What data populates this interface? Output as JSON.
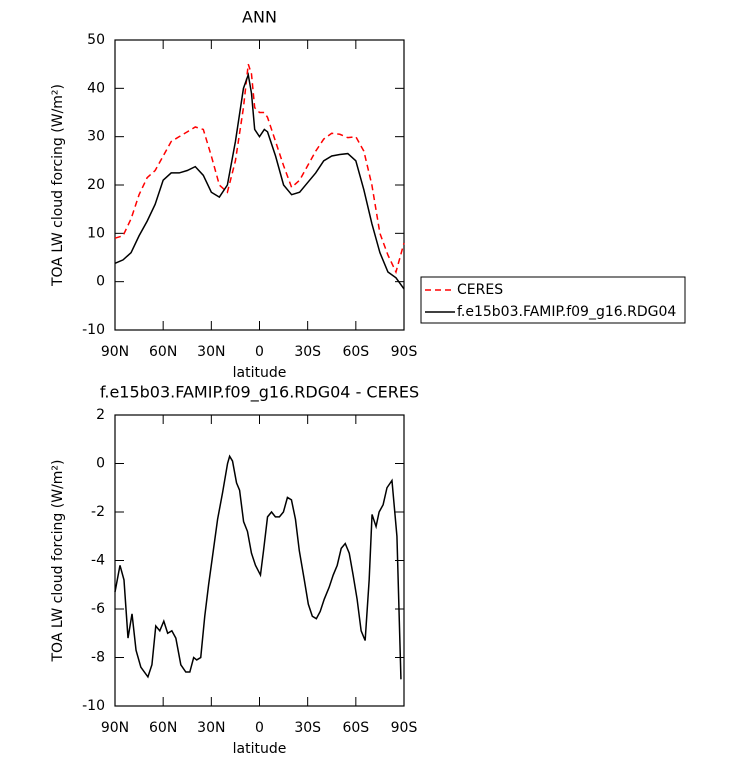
{
  "chart_data": [
    {
      "type": "line",
      "title": "ANN",
      "x_label": "latitude",
      "y_label": "TOA LW cloud forcing (W/m²)",
      "x": [
        90,
        85,
        80,
        75,
        70,
        65,
        60,
        55,
        50,
        45,
        40,
        35,
        30,
        25,
        20,
        15,
        10,
        7,
        5,
        3,
        0,
        -3,
        -5,
        -10,
        -15,
        -20,
        -25,
        -30,
        -35,
        -40,
        -45,
        -50,
        -55,
        -60,
        -65,
        -70,
        -75,
        -80,
        -85,
        -90
      ],
      "series": [
        {
          "name": "CERES",
          "color": "#ff0000",
          "dashed": true,
          "values": [
            9,
            9.5,
            13,
            18,
            21.5,
            23,
            26,
            29,
            30,
            31,
            32,
            31.5,
            26,
            20,
            18.5,
            25,
            36,
            45,
            43,
            36,
            35,
            35,
            34,
            29,
            24,
            19.5,
            21,
            24,
            27,
            29.5,
            30.7,
            30.5,
            29.8,
            30,
            27,
            20,
            10,
            5.5,
            2,
            8
          ]
        },
        {
          "name": "f.e15b03.FAMIP.f09_g16.RDG04",
          "color": "#000000",
          "dashed": false,
          "values": [
            3.8,
            4.5,
            6,
            9.5,
            12.5,
            16,
            21,
            22.5,
            22.5,
            23,
            23.8,
            22,
            18.5,
            17.5,
            20,
            29,
            40,
            42.8,
            39,
            31.5,
            30,
            31.5,
            31,
            26,
            20,
            18,
            18.5,
            20.5,
            22.5,
            25,
            26,
            26.3,
            26.5,
            25,
            19,
            12,
            6,
            2,
            0.8,
            -1.5
          ]
        }
      ],
      "xlim": [
        90,
        -90
      ],
      "xticks": [
        {
          "value": 90,
          "label": "90N"
        },
        {
          "value": 60,
          "label": "60N"
        },
        {
          "value": 30,
          "label": "30N"
        },
        0,
        {
          "value": -30,
          "label": "30S"
        },
        {
          "value": -60,
          "label": "60S"
        },
        {
          "value": -90,
          "label": "90S"
        }
      ],
      "ylim": [
        -10,
        50
      ],
      "yticks": [
        -10,
        0,
        10,
        20,
        30,
        40,
        50
      ],
      "legend": "right"
    },
    {
      "type": "line",
      "title": "f.e15b03.FAMIP.f09_g16.RDG04 - CERES",
      "x_label": "latitude",
      "y_label": "TOA LW cloud forcing (W/m²)",
      "x": [
        90,
        86.9,
        84.4,
        81.9,
        79.4,
        76.9,
        73.9,
        69.5,
        67,
        64.6,
        62.1,
        59.6,
        57.2,
        54.6,
        52.1,
        49,
        45.9,
        43.4,
        41,
        39.1,
        36.6,
        34.1,
        31.7,
        29.2,
        26.1,
        23,
        19.9,
        18.6,
        16.8,
        14.3,
        12.4,
        9.9,
        7.5,
        5,
        2.5,
        -0.6,
        -2.5,
        -5,
        -7.5,
        -9.9,
        -12.4,
        -14.9,
        -17.4,
        -19.9,
        -22.4,
        -24.8,
        -27.9,
        -30.4,
        -32.9,
        -35.4,
        -37.8,
        -40.3,
        -43.4,
        -45.9,
        -48.4,
        -50.9,
        -53.4,
        -55.9,
        -58.3,
        -60.8,
        -63.3,
        -65.8,
        -68.3,
        -70.1,
        -72.6,
        -74.5,
        -77,
        -79.4,
        -82.5,
        -85.6,
        -88.1
      ],
      "values": [
        -5.3,
        -4.2,
        -4.8,
        -7.2,
        -6.2,
        -7.7,
        -8.4,
        -8.8,
        -8.3,
        -6.7,
        -6.9,
        -6.5,
        -7,
        -6.9,
        -7.2,
        -8.3,
        -8.6,
        -8.6,
        -8,
        -8.1,
        -8,
        -6.3,
        -5,
        -3.8,
        -2.3,
        -1.2,
        0,
        0.3,
        0.1,
        -0.8,
        -1.1,
        -2.4,
        -2.8,
        -3.7,
        -4.2,
        -4.6,
        -3.6,
        -2.2,
        -2,
        -2.2,
        -2.2,
        -2,
        -1.4,
        -1.5,
        -2.3,
        -3.6,
        -4.8,
        -5.8,
        -6.3,
        -6.4,
        -6.1,
        -5.6,
        -5.1,
        -4.6,
        -4.2,
        -3.5,
        -3.3,
        -3.7,
        -4.6,
        -5.6,
        -6.9,
        -7.3,
        -4.8,
        -2.1,
        -2.6,
        -2,
        -1.7,
        -1,
        -0.7,
        -3,
        -8.9
      ],
      "color": "#000000",
      "xlim": [
        90,
        -90
      ],
      "xticks": [
        {
          "value": 90,
          "label": "90N"
        },
        {
          "value": 60,
          "label": "60N"
        },
        {
          "value": 30,
          "label": "30N"
        },
        0,
        {
          "value": -30,
          "label": "30S"
        },
        {
          "value": -60,
          "label": "60S"
        },
        {
          "value": -90,
          "label": "90S"
        }
      ],
      "ylim": [
        -10,
        2
      ],
      "yticks": [
        -10,
        -8,
        -6,
        -4,
        -2,
        0,
        2
      ]
    }
  ]
}
